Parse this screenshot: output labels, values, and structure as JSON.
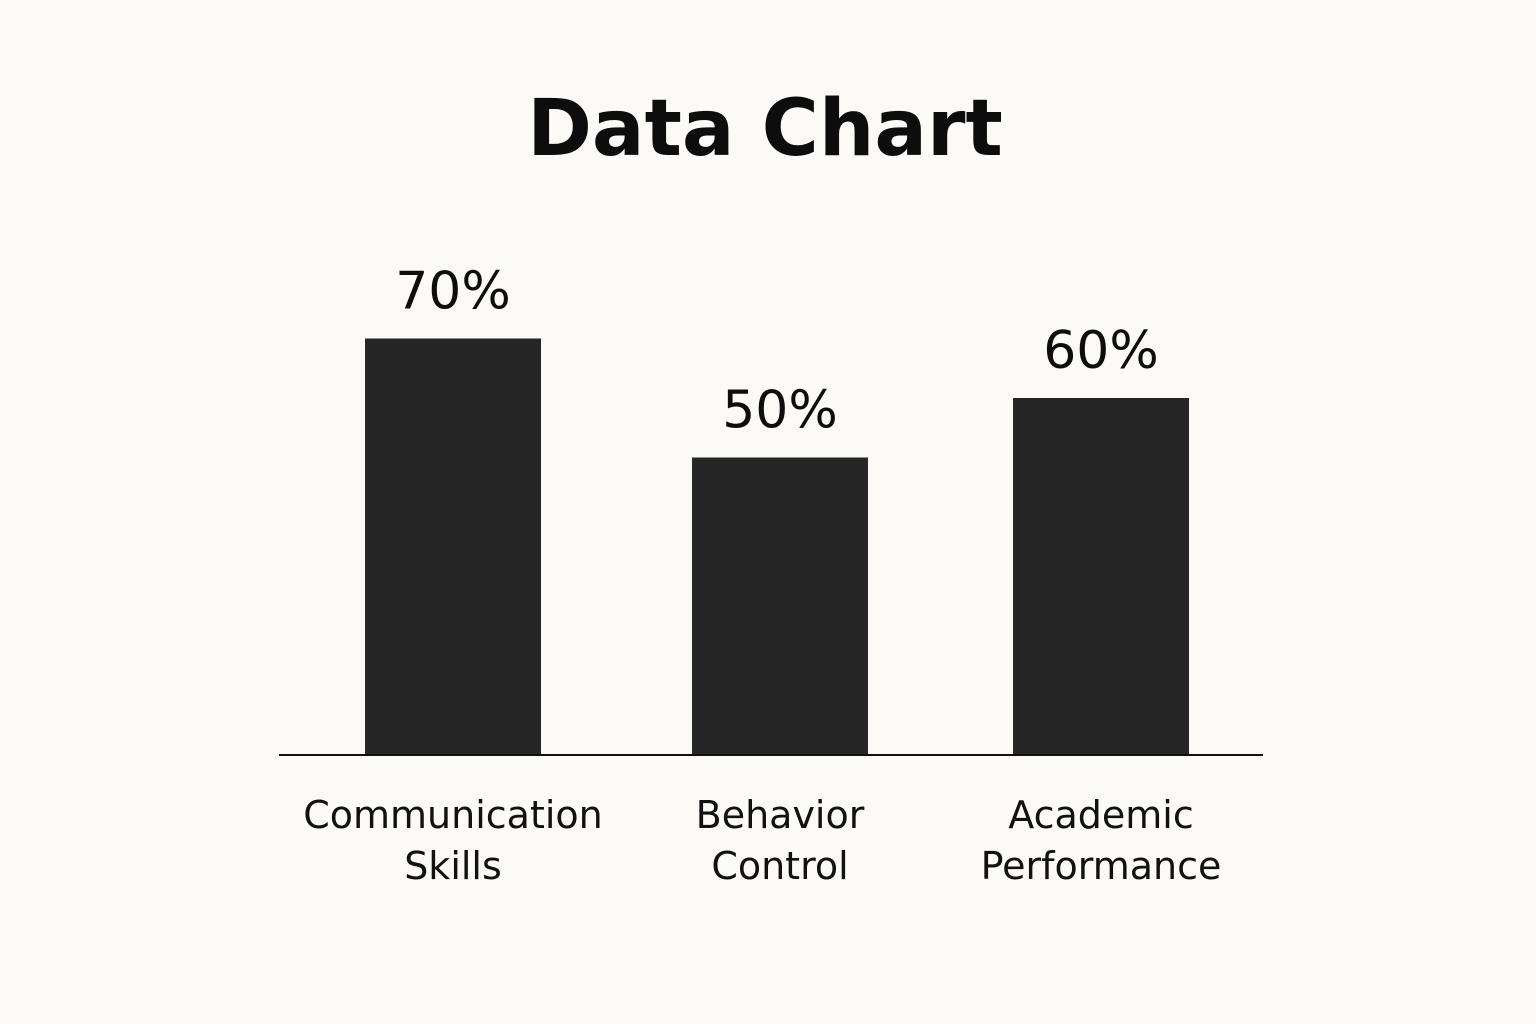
{
  "chart_data": {
    "type": "bar",
    "title": "Data Chart",
    "categories": [
      [
        "Communication",
        "Skills"
      ],
      [
        "Behavior",
        "Control"
      ],
      [
        "Academic",
        "Performance"
      ]
    ],
    "values": [
      70,
      50,
      60
    ],
    "value_labels": [
      "70%",
      "50%",
      "60%"
    ],
    "xlabel": "",
    "ylabel": "",
    "ylim": [
      0,
      100
    ],
    "grid": false,
    "legend": "none",
    "bar_color": "#262626",
    "axis_color": "#111111",
    "background_color": "#fbfaf6"
  }
}
